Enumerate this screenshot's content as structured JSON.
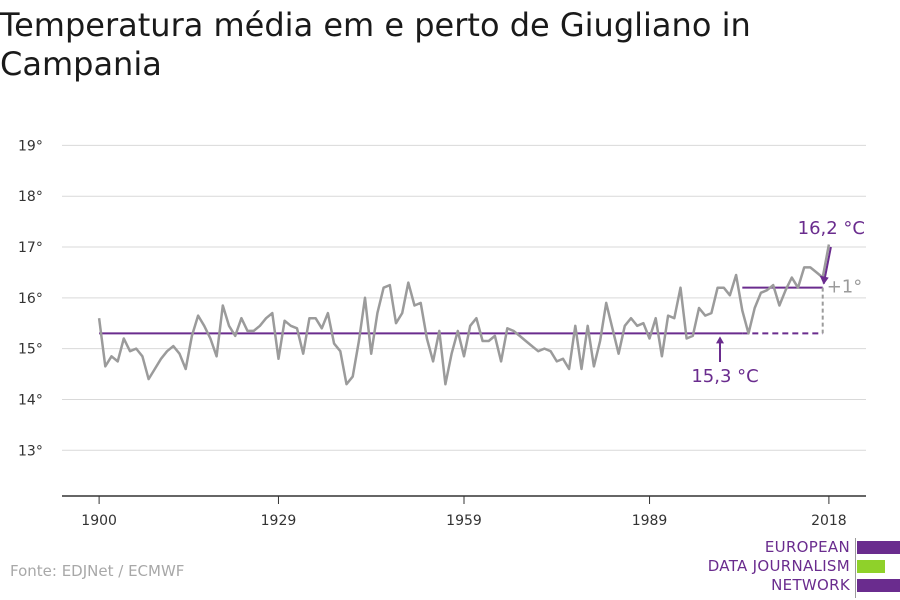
{
  "title": "Temperatura média em e perto de Giugliano in Campania",
  "source": "Fonte: EDJNet / ECMWF",
  "logo": {
    "line1": "EUROPEAN",
    "line2": "DATA JOURNALISM",
    "line3": "NETWORK",
    "colors": [
      "#6a2c8e",
      "#8fd12a",
      "#6a2c8e"
    ]
  },
  "colors": {
    "series": "#9b9b9b",
    "reference": "#6a2c8e",
    "accent_text": "#6a2c8e",
    "difference": "#9b9b9b",
    "grid": "#d9d9d9",
    "axis": "#333333"
  },
  "chart_data": {
    "type": "line",
    "x_tick_labels": [
      "1900",
      "1929",
      "1959",
      "1989",
      "2018"
    ],
    "x_ticks": [
      1900,
      1929,
      1959,
      1989,
      2018
    ],
    "y_tick_labels": [
      "13°",
      "14°",
      "15°",
      "16°",
      "17°",
      "18°",
      "19°"
    ],
    "y_ticks": [
      13,
      14,
      15,
      16,
      17,
      18,
      19
    ],
    "xlim": [
      1894,
      2024
    ],
    "ylim": [
      12.1,
      19.5
    ],
    "grid": true,
    "series": [
      {
        "x_start": 1900,
        "values": [
          15.6,
          14.65,
          14.85,
          14.75,
          15.2,
          14.95,
          15.0,
          14.85,
          14.4,
          14.6,
          14.8,
          14.95,
          15.05,
          14.9,
          14.6,
          15.25,
          15.65,
          15.45,
          15.2,
          14.85,
          15.85,
          15.45,
          15.25,
          15.6,
          15.35,
          15.35,
          15.45,
          15.6,
          15.7,
          14.8,
          15.55,
          15.45,
          15.4,
          14.9,
          15.6,
          15.6,
          15.4,
          15.7,
          15.1,
          14.95,
          14.3,
          14.45,
          15.15,
          16.0,
          14.9,
          15.7,
          16.2,
          16.25,
          15.5,
          15.7,
          16.3,
          15.85,
          15.9,
          15.2,
          14.75,
          15.35,
          14.3,
          14.9,
          15.35,
          14.85,
          15.45,
          15.6,
          15.15,
          15.15,
          15.25,
          14.75,
          15.4,
          15.35,
          15.25,
          15.15,
          15.05,
          14.95,
          15.0,
          14.95,
          14.75,
          14.8,
          14.6,
          15.45,
          14.6,
          15.45,
          14.65,
          15.15,
          15.9,
          15.4,
          14.9,
          15.45,
          15.6,
          15.45,
          15.5,
          15.2,
          15.6,
          14.85,
          15.65,
          15.6,
          16.2,
          15.2,
          15.25,
          15.8,
          15.65,
          15.7,
          16.2,
          16.2,
          16.05,
          16.45,
          15.75,
          15.3,
          15.8,
          16.1,
          16.15,
          16.25,
          15.85,
          16.15,
          16.4,
          16.2,
          16.6,
          16.6,
          16.5,
          16.4,
          17.05
        ]
      }
    ],
    "reference": {
      "baseline_value": 15.3,
      "baseline_label": "15,3 °C",
      "recent_value": 16.2,
      "recent_label": "16,2 °C",
      "recent_from": 2004,
      "difference_label": "+1°"
    }
  }
}
